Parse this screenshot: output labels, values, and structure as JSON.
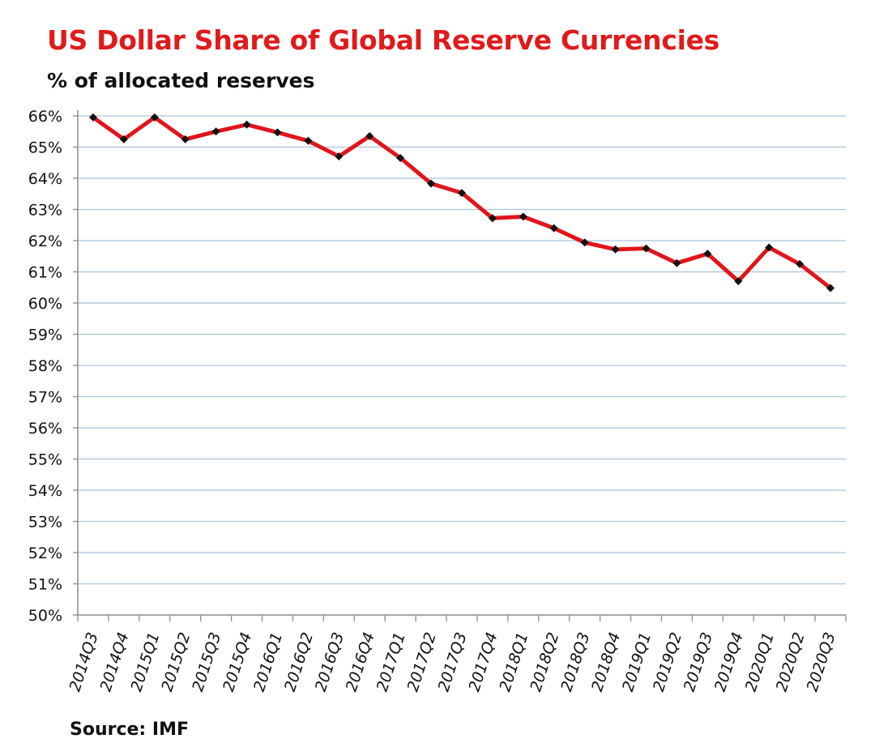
{
  "title": "US Dollar Share of Global Reserve Currencies",
  "subtitle": "% of allocated reserves",
  "source": "Source: IMF",
  "colors": {
    "title": "#e01b1b",
    "line": "#e0151b",
    "marker": "#111111",
    "grid": "#a9c4dc",
    "axis": "#8c8c8c"
  },
  "chart_data": {
    "type": "line",
    "title": "US Dollar Share of Global Reserve Currencies",
    "subtitle": "% of allocated reserves",
    "xlabel": "",
    "ylabel": "",
    "ylim": [
      50,
      66
    ],
    "yticks": [
      "50%",
      "51%",
      "52%",
      "53%",
      "54%",
      "55%",
      "56%",
      "57%",
      "58%",
      "59%",
      "60%",
      "61%",
      "62%",
      "63%",
      "64%",
      "65%",
      "66%"
    ],
    "grid": true,
    "legend": "none",
    "categories": [
      "2014Q3",
      "2014Q4",
      "2015Q1",
      "2015Q2",
      "2015Q3",
      "2015Q4",
      "2016Q1",
      "2016Q2",
      "2016Q3",
      "2016Q4",
      "2017Q1",
      "2017Q2",
      "2017Q3",
      "2017Q4",
      "2018Q1",
      "2018Q2",
      "2018Q3",
      "2018Q4",
      "2019Q1",
      "2019Q2",
      "2019Q3",
      "2019Q4",
      "2020Q1",
      "2020Q2",
      "2020Q3"
    ],
    "series": [
      {
        "values": [
          65.95,
          65.25,
          65.95,
          65.25,
          65.5,
          65.72,
          65.47,
          65.2,
          64.7,
          65.35,
          64.65,
          63.83,
          63.53,
          62.72,
          62.77,
          62.4,
          61.94,
          61.72,
          61.75,
          61.28,
          61.58,
          60.7,
          61.78,
          61.25,
          60.48
        ]
      }
    ]
  }
}
